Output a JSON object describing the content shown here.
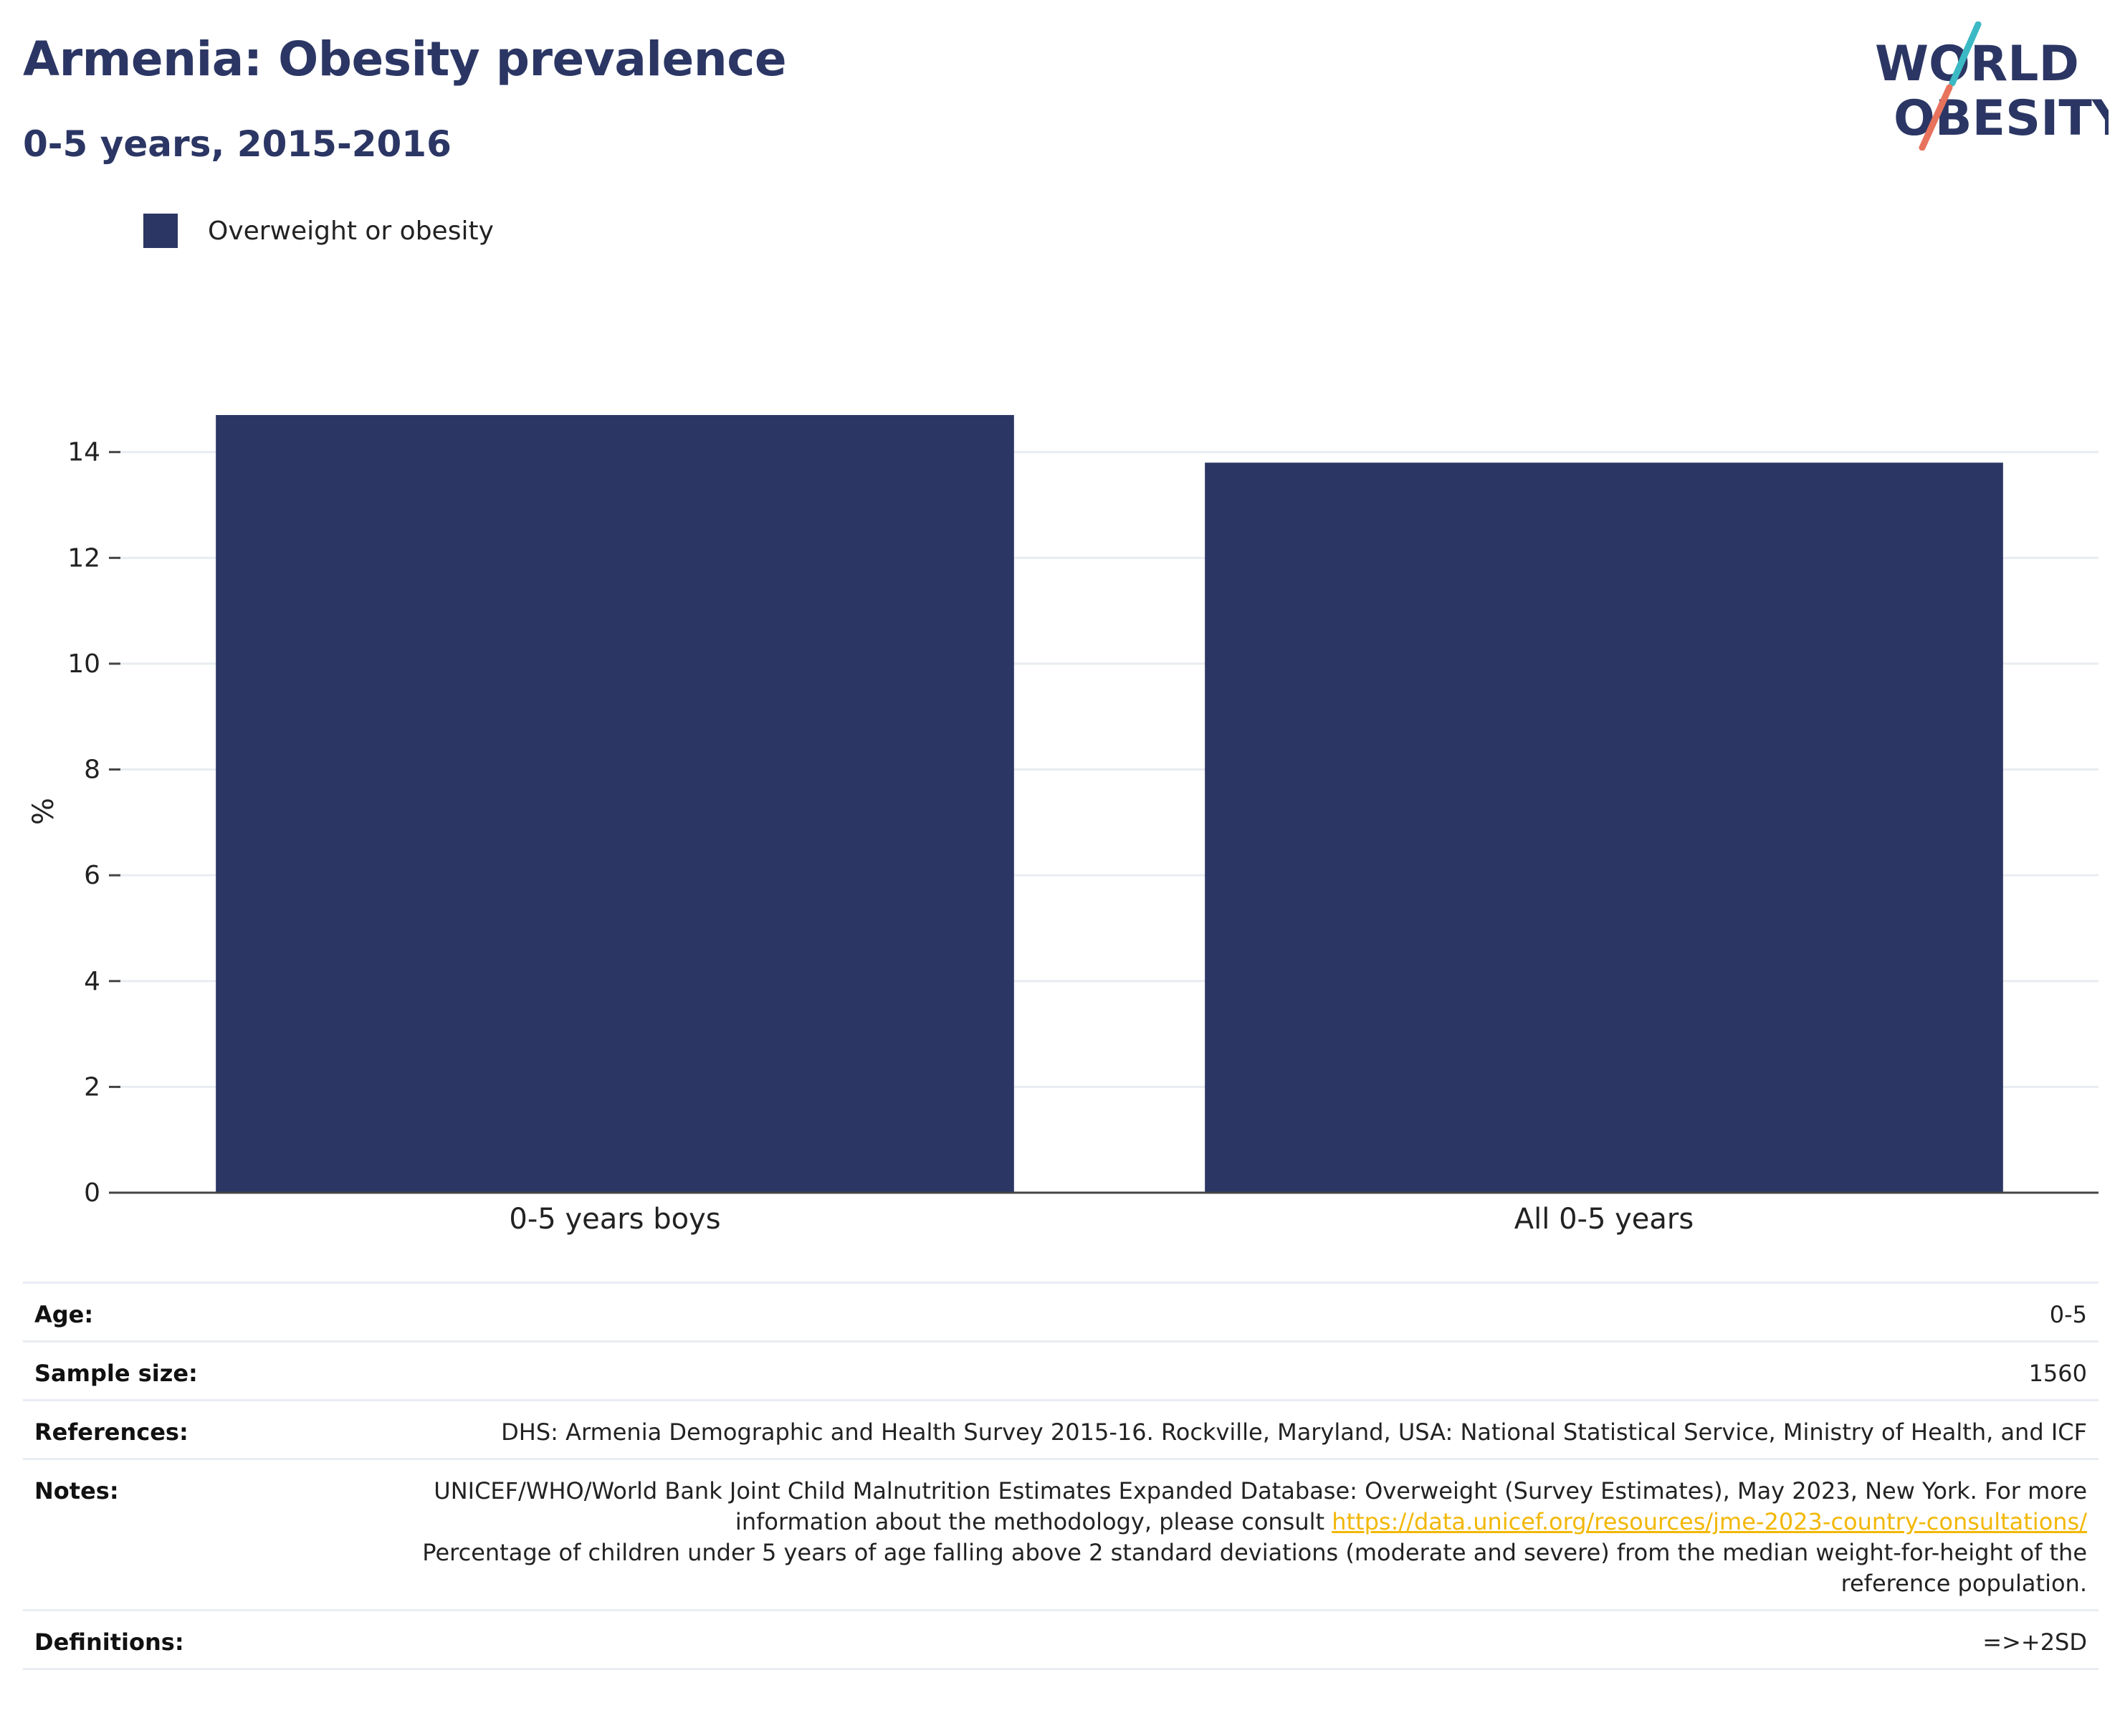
{
  "header": {
    "title": "Armenia: Obesity prevalence",
    "subtitle": "0-5 years, 2015-2016",
    "logo_line1": "WORLD",
    "logo_line2": "OBESITY"
  },
  "colors": {
    "bar": "#2b3664",
    "logo_text": "#2b3664",
    "logo_teal": "#3bb9c4",
    "logo_coral": "#e8735d",
    "link": "#f2b705"
  },
  "chart_data": {
    "type": "bar",
    "categories": [
      "0-5 years boys",
      "All 0-5 years"
    ],
    "series": [
      {
        "name": "Overweight or obesity",
        "values": [
          14.7,
          13.8
        ]
      }
    ],
    "ylabel": "%",
    "ylim": [
      0,
      15.5
    ],
    "yticks": [
      0,
      2,
      4,
      6,
      8,
      10,
      12,
      14
    ],
    "grid": true,
    "legend": "top-left"
  },
  "info": {
    "age_label": "Age:",
    "age_value": "0-5",
    "sample_label": "Sample size:",
    "sample_value": "1560",
    "references_label": "References:",
    "references_value": "DHS: Armenia Demographic and Health Survey 2015-16. Rockville, Maryland, USA: National Statistical Service, Ministry of Health, and ICF",
    "notes_label": "Notes:",
    "notes_text1": "UNICEF/WHO/World Bank Joint Child Malnutrition Estimates Expanded Database: Overweight (Survey Estimates), May 2023, New York. For more information about the methodology, please consult ",
    "notes_link": "https://data.unicef.org/resources/jme-2023-country-consultations/",
    "notes_text2": "Percentage of children under 5 years of age falling above 2 standard deviations (moderate and severe) from the median weight-for-height of the reference population.",
    "definitions_label": "Definitions:",
    "definitions_value": "=>+2SD"
  }
}
